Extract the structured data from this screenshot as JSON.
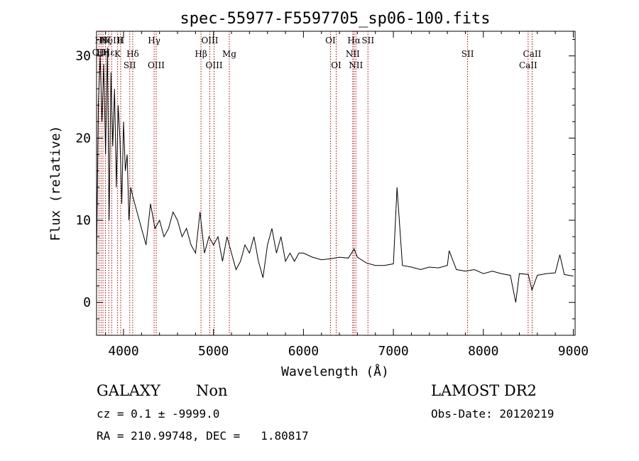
{
  "chart_data": {
    "type": "line",
    "title": "spec-55977-F5597705_sp06-100.fits",
    "xlabel": "Wavelength (Å)",
    "ylabel": "Flux (relative)",
    "xlim": [
      3700,
      9020
    ],
    "ylim": [
      -4,
      33
    ],
    "x_ticks": [
      4000,
      5000,
      6000,
      7000,
      8000,
      9000
    ],
    "x_tick_labels": [
      "4000",
      "5000",
      "6000",
      "7000",
      "8000",
      "9000"
    ],
    "y_ticks": [
      0,
      10,
      20,
      30
    ],
    "y_tick_labels": [
      "0",
      "10",
      "20",
      "30"
    ],
    "grid": false,
    "line_color": "#000000",
    "marker_color": "#b00000",
    "series": [
      {
        "x": [
          3700,
          3720,
          3740,
          3760,
          3780,
          3800,
          3820,
          3840,
          3860,
          3880,
          3900,
          3920,
          3940,
          3960,
          3980,
          4000,
          4020,
          4040,
          4060,
          4080,
          4100,
          4150,
          4200,
          4250,
          4300,
          4350,
          4400,
          4450,
          4500,
          4550,
          4600,
          4650,
          4700,
          4750,
          4800,
          4850,
          4900,
          4950,
          5000,
          5050,
          5100,
          5150,
          5200,
          5250,
          5300,
          5350,
          5400,
          5450,
          5500,
          5550,
          5600,
          5650,
          5700,
          5750,
          5800,
          5850,
          5900,
          5950,
          6000,
          6100,
          6200,
          6300,
          6400,
          6500,
          6563,
          6600,
          6700,
          6800,
          6900,
          7000,
          7040,
          7100,
          7200,
          7300,
          7400,
          7500,
          7600,
          7620,
          7700,
          7800,
          7900,
          8000,
          8100,
          8200,
          8300,
          8360,
          8400,
          8500,
          8540,
          8600,
          8700,
          8800,
          8850,
          8900,
          9000
        ],
        "y": [
          5,
          24,
          30,
          22,
          29,
          18,
          31,
          10,
          28,
          19,
          26,
          14,
          24,
          20,
          12,
          22,
          16,
          18,
          10,
          14,
          13,
          11,
          9,
          7,
          12,
          9,
          10,
          8,
          9,
          11,
          10,
          8,
          9,
          7,
          6,
          11,
          6,
          8,
          7,
          8,
          5,
          8,
          6,
          4,
          5,
          7,
          6,
          8,
          5,
          3,
          7,
          9,
          6,
          8,
          5,
          6,
          5,
          6,
          6,
          5.5,
          5.2,
          5.3,
          5.5,
          5.4,
          6.5,
          5.5,
          4.8,
          4.5,
          4.5,
          4.7,
          14,
          4.5,
          4.3,
          4,
          4.3,
          4.2,
          4.5,
          6.3,
          4,
          3.8,
          4,
          3.5,
          3.8,
          3.5,
          3.3,
          0,
          3.5,
          3.4,
          1.5,
          3.3,
          3.5,
          3.6,
          5.8,
          3.4,
          3.2
        ]
      }
    ],
    "lines": [
      {
        "wl": 3727,
        "label": "OII",
        "row": 2
      },
      {
        "wl": 3750,
        "label": "Hθ",
        "row": 1
      },
      {
        "wl": 3771,
        "label": "Hη",
        "row": 2
      },
      {
        "wl": 3798,
        "label": "Hζ",
        "row": 1
      },
      {
        "wl": 3835,
        "label": "Hε",
        "row": 2
      },
      {
        "wl": 3869,
        "label": "NeIII",
        "row": 1
      },
      {
        "wl": 3934,
        "label": "K",
        "row": 3
      },
      {
        "wl": 3968,
        "label": "H",
        "row": 1
      },
      {
        "wl": 4069,
        "label": "SII",
        "row": 4
      },
      {
        "wl": 4102,
        "label": "Hδ",
        "row": 3
      },
      {
        "wl": 4340,
        "label": "Hγ",
        "row": 1
      },
      {
        "wl": 4363,
        "label": "OIII",
        "row": 4
      },
      {
        "wl": 4861,
        "label": "Hβ",
        "row": 3
      },
      {
        "wl": 4959,
        "label": "OIII",
        "row": 1
      },
      {
        "wl": 5007,
        "label": "OIII",
        "row": 4
      },
      {
        "wl": 5176,
        "label": "Mg",
        "row": 3
      },
      {
        "wl": 6300,
        "label": "OI",
        "row": 1
      },
      {
        "wl": 6364,
        "label": "OI",
        "row": 4
      },
      {
        "wl": 6548,
        "label": "NII",
        "row": 3
      },
      {
        "wl": 6563,
        "label": "Hα",
        "row": 1
      },
      {
        "wl": 6583,
        "label": "NII",
        "row": 4
      },
      {
        "wl": 6717,
        "label": "SII",
        "row": 1
      },
      {
        "wl": 7825,
        "label": "SII",
        "row": 3
      },
      {
        "wl": 8498,
        "label": "CaII",
        "row": 4
      },
      {
        "wl": 8542,
        "label": "CaII",
        "row": 3
      }
    ]
  },
  "info": {
    "class_label": "GALAXY",
    "subclass_label": "Non",
    "survey": "LAMOST DR2",
    "redshift_line": "cz = 0.1 ± -9999.0",
    "obs_date": "Obs-Date: 20120219",
    "coords": "RA = 210.99748, DEC =   1.80817"
  }
}
